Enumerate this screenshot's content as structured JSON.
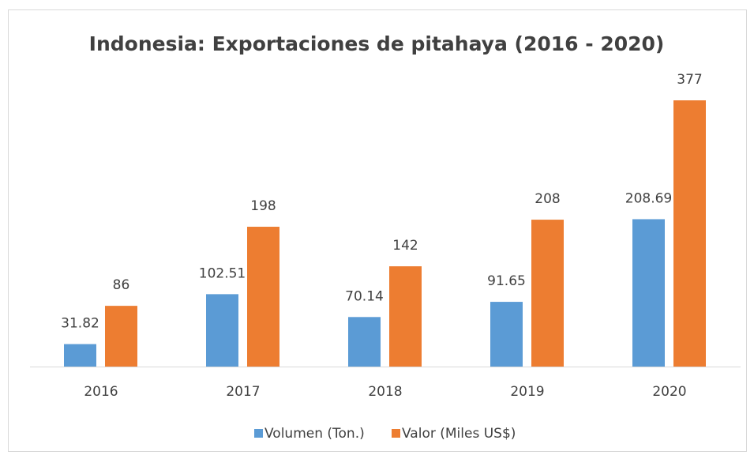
{
  "chart_data": {
    "type": "bar",
    "title": "Indonesia: Exportaciones de pitahaya (2016 - 2020)",
    "categories": [
      "2016",
      "2017",
      "2018",
      "2019",
      "2020"
    ],
    "series": [
      {
        "name": "Volumen (Ton.)",
        "color": "#5b9bd5",
        "values": [
          31.82,
          102.51,
          70.14,
          91.65,
          208.69
        ]
      },
      {
        "name": "Valor (Miles US$)",
        "color": "#ed7d31",
        "values": [
          86,
          198,
          142,
          208,
          377
        ]
      }
    ],
    "legend": "bottom"
  }
}
